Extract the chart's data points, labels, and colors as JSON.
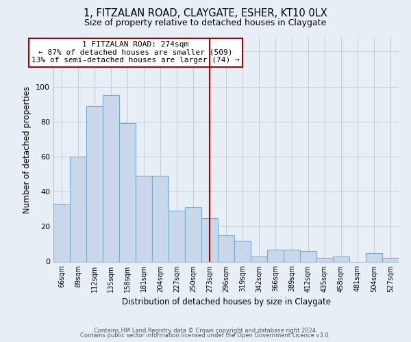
{
  "title": "1, FITZALAN ROAD, CLAYGATE, ESHER, KT10 0LX",
  "subtitle": "Size of property relative to detached houses in Claygate",
  "xlabel": "Distribution of detached houses by size in Claygate",
  "ylabel": "Number of detached properties",
  "categories": [
    "66sqm",
    "89sqm",
    "112sqm",
    "135sqm",
    "158sqm",
    "181sqm",
    "204sqm",
    "227sqm",
    "250sqm",
    "273sqm",
    "296sqm",
    "319sqm",
    "342sqm",
    "366sqm",
    "389sqm",
    "412sqm",
    "435sqm",
    "458sqm",
    "481sqm",
    "504sqm",
    "527sqm"
  ],
  "values": [
    33,
    60,
    89,
    95,
    79,
    49,
    49,
    29,
    31,
    25,
    15,
    12,
    3,
    7,
    7,
    6,
    2,
    3,
    0,
    5,
    2
  ],
  "bar_color": "#c8d8ea",
  "bar_edge_color": "#7aa8c8",
  "highlight_index": 9,
  "highlight_line_color": "#aa0000",
  "annotation_line1": "1 FITZALAN ROAD: 274sqm",
  "annotation_line2": "← 87% of detached houses are smaller (509)",
  "annotation_line3": "13% of semi-detached houses are larger (74) →",
  "annotation_box_color": "#ffffff",
  "annotation_box_edge": "#aa0000",
  "ylim": [
    0,
    128
  ],
  "yticks": [
    0,
    20,
    40,
    60,
    80,
    100,
    120
  ],
  "footer_line1": "Contains HM Land Registry data © Crown copyright and database right 2024.",
  "footer_line2": "Contains public sector information licensed under the Open Government Licence v3.0.",
  "bg_color": "#e8eef5",
  "plot_bg_color": "#e8eef5",
  "grid_color": "#c0ccd8"
}
